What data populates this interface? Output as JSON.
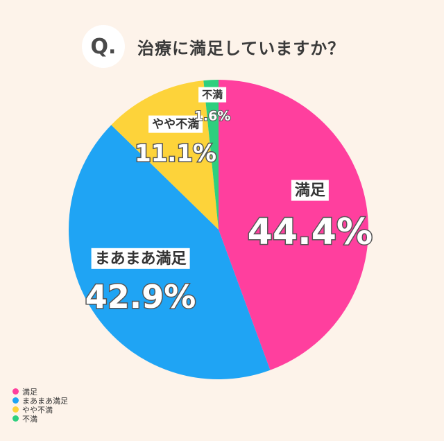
{
  "header": {
    "q_label": "Q.",
    "question": "治療に満足していますか？"
  },
  "chart_data": {
    "type": "pie",
    "title": "治療に満足していますか？",
    "categories": [
      "満足",
      "まあまあ満足",
      "やや不満",
      "不満"
    ],
    "values": [
      44.4,
      42.9,
      11.1,
      1.6
    ],
    "value_labels": [
      "44.4%",
      "42.9%",
      "11.1%",
      "1.6%"
    ],
    "colors": [
      "#ff3f9e",
      "#1fa4f4",
      "#fdd33a",
      "#2ecf7e"
    ],
    "start": "12 o'clock",
    "direction": "clockwise",
    "legend_position": "bottom-left"
  }
}
